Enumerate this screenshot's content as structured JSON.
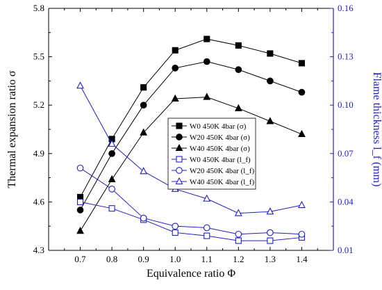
{
  "chart_data": {
    "type": "line",
    "xlabel": "Equivalence ratio Φ",
    "ylabel_left": "Thermal expansion ratio σ",
    "ylabel_right": "Flame thickness l_f (mm)",
    "x": [
      0.7,
      0.8,
      0.9,
      1.0,
      1.1,
      1.2,
      1.3,
      1.4
    ],
    "xlim": [
      0.6,
      1.5
    ],
    "ylim_left": [
      4.3,
      5.8
    ],
    "ylim_right": [
      0.01,
      0.16
    ],
    "x_ticks": [
      "0.7",
      "0.8",
      "0.9",
      "1.0",
      "1.1",
      "1.2",
      "1.3",
      "1.4"
    ],
    "y_left_ticks": [
      "4.3",
      "4.6",
      "4.9",
      "5.2",
      "5.5",
      "5.8"
    ],
    "y_right_ticks": [
      "0.01",
      "0.04",
      "0.07",
      "0.10",
      "0.13",
      "0.16"
    ],
    "grid": false,
    "legend_position": "center-right",
    "colors": {
      "left_axis": "#000000",
      "right_axis": "#1f1fc8"
    },
    "series": [
      {
        "name": "W0 450K 4bar (σ)",
        "axis": "left",
        "marker": "square-filled",
        "color": "#000000",
        "values": [
          4.63,
          4.99,
          5.31,
          5.54,
          5.61,
          5.57,
          5.52,
          5.46
        ]
      },
      {
        "name": "W20 450K 4bar (σ)",
        "axis": "left",
        "marker": "circle-filled",
        "color": "#000000",
        "values": [
          4.55,
          4.9,
          5.2,
          5.43,
          5.47,
          5.42,
          5.35,
          5.28
        ]
      },
      {
        "name": "W40 450K 4bar (σ)",
        "axis": "left",
        "marker": "triangle-filled",
        "color": "#000000",
        "values": [
          4.42,
          4.74,
          5.03,
          5.24,
          5.25,
          5.18,
          5.1,
          5.02
        ]
      },
      {
        "name": "W0 450K 4bar (l_f)",
        "axis": "right",
        "marker": "square-open",
        "color": "#1f1fc8",
        "values": [
          0.04,
          0.036,
          0.029,
          0.021,
          0.019,
          0.016,
          0.016,
          0.018
        ]
      },
      {
        "name": "W20 450K 4bar (l_f)",
        "axis": "right",
        "marker": "circle-open",
        "color": "#1f1fc8",
        "values": [
          0.061,
          0.048,
          0.03,
          0.025,
          0.024,
          0.02,
          0.021,
          0.02
        ]
      },
      {
        "name": "W40 450K 4bar (l_f)",
        "axis": "right",
        "marker": "triangle-open",
        "color": "#1f1fc8",
        "values": [
          0.112,
          0.076,
          0.059,
          0.048,
          0.042,
          0.033,
          0.034,
          0.038
        ]
      }
    ]
  }
}
